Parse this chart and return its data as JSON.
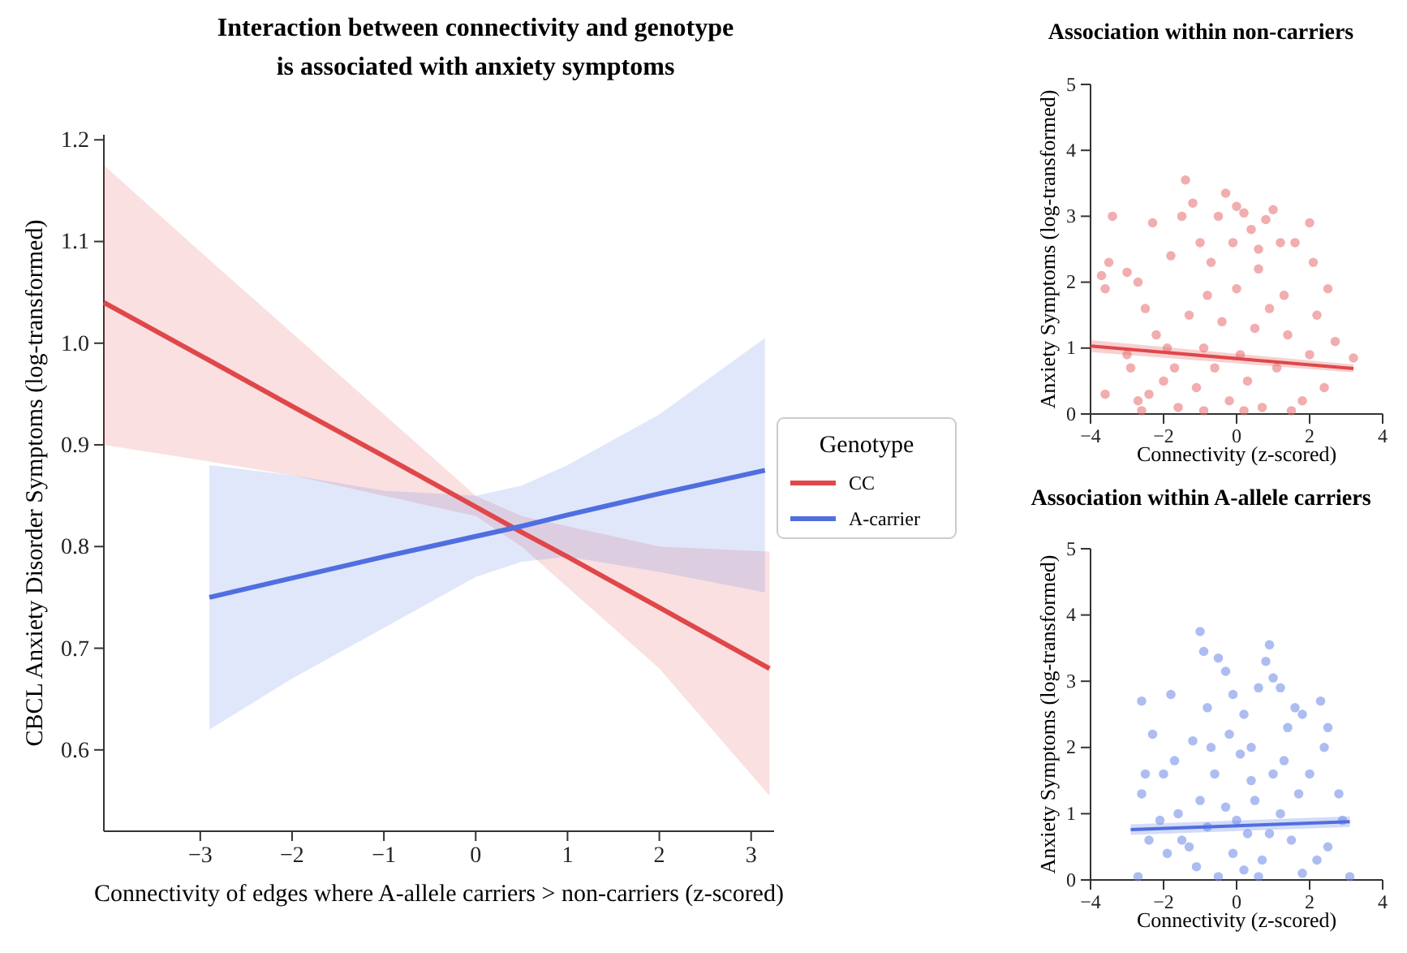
{
  "chart_data": [
    {
      "type": "line",
      "title": "Interaction between connectivity and genotype\nis associated with anxiety symptoms",
      "xlabel": "Connectivity of edges where A-allele carriers > non-carriers (z-scored)",
      "ylabel": "CBCL Anxiety Disorder Symptoms (log-transformed)",
      "legend_title": "Genotype",
      "legend": "right",
      "xlim": [
        -4.05,
        3.25
      ],
      "ylim": [
        0.52,
        1.205
      ],
      "xticks": [
        {
          "value": -3,
          "label": "−3"
        },
        {
          "value": -2,
          "label": "−2"
        },
        {
          "value": -1,
          "label": "−1"
        },
        0,
        1,
        2,
        3
      ],
      "yticks": [
        0.6,
        0.7,
        0.8,
        0.9,
        {
          "value": 1,
          "label": "1.0"
        },
        1.1,
        1.2
      ],
      "line_style": "solid",
      "series": [
        {
          "name": "CC",
          "color": "#e0474a",
          "x": [
            -4.05,
            -3,
            -2,
            -1,
            0,
            0.5,
            1,
            2,
            3.2
          ],
          "values": [
            1.04,
            0.988,
            0.938,
            0.889,
            0.839,
            0.814,
            0.79,
            0.74,
            0.68
          ],
          "lower": [
            0.9,
            0.885,
            0.87,
            0.85,
            0.83,
            0.8,
            0.76,
            0.68,
            0.555
          ],
          "upper": [
            1.175,
            1.09,
            1.01,
            0.93,
            0.85,
            0.83,
            0.82,
            0.8,
            0.795
          ]
        },
        {
          "name": "A-carrier",
          "color": "#4f6fe0",
          "x": [
            -2.9,
            -2,
            -1,
            0,
            0.5,
            1,
            2,
            3.15
          ],
          "values": [
            0.75,
            0.769,
            0.79,
            0.81,
            0.82,
            0.831,
            0.852,
            0.875
          ],
          "lower": [
            0.62,
            0.67,
            0.72,
            0.77,
            0.785,
            0.79,
            0.775,
            0.755
          ],
          "upper": [
            0.88,
            0.87,
            0.855,
            0.85,
            0.86,
            0.88,
            0.93,
            1.005
          ]
        }
      ]
    },
    {
      "type": "scatter",
      "title": "Association within non-carriers",
      "xlabel": "Connectivity (z-scored)",
      "ylabel": "Anxiety Symptoms (log-transformed)",
      "xlim": [
        -4,
        4
      ],
      "ylim": [
        0,
        5
      ],
      "xticks": [
        {
          "value": -4,
          "label": "−4"
        },
        {
          "value": -2,
          "label": "−2"
        },
        0,
        2,
        4
      ],
      "yticks": [
        0,
        1,
        2,
        3,
        4,
        5
      ],
      "marker": "circle",
      "series": [
        {
          "color": "#e8696b",
          "x": [
            -3.6,
            -3.4,
            -3.5,
            -3.7,
            -3.6,
            -3.0,
            -2.7,
            -2.7,
            -2.6,
            -3.0,
            -2.9,
            -2.5,
            -2.3,
            -2.2,
            -2.0,
            -1.8,
            -1.5,
            -1.4,
            -1.2,
            -1.0,
            -0.8,
            -0.5,
            -0.3,
            0.0,
            0.2,
            0.4,
            0.6,
            0.8,
            1.0,
            1.2,
            1.3,
            1.6,
            2.0,
            2.1,
            2.2,
            2.0,
            2.4,
            2.7,
            3.2,
            1.8,
            1.5,
            -1.6,
            -1.1,
            -0.9,
            -0.6,
            -0.4,
            -0.2,
            0.0,
            0.1,
            0.3,
            0.5,
            0.7,
            0.9,
            1.1,
            -1.3,
            -1.9,
            -0.7,
            0.6,
            -0.1,
            1.4,
            -2.4,
            0.2,
            -0.9,
            2.5,
            -1.7
          ],
          "values": [
            0.3,
            3.0,
            2.3,
            2.1,
            1.9,
            2.15,
            2.0,
            0.2,
            0.05,
            0.9,
            0.7,
            1.6,
            2.9,
            1.2,
            0.5,
            2.4,
            3.0,
            3.55,
            3.2,
            2.6,
            1.8,
            3.0,
            3.35,
            3.15,
            3.05,
            2.8,
            2.2,
            2.95,
            3.1,
            2.6,
            1.8,
            2.6,
            2.9,
            2.3,
            1.5,
            0.9,
            0.4,
            1.1,
            0.85,
            0.2,
            0.05,
            0.1,
            0.4,
            1.0,
            0.7,
            1.4,
            0.2,
            1.9,
            0.9,
            0.5,
            1.3,
            0.1,
            1.6,
            0.7,
            1.5,
            1.0,
            2.3,
            2.5,
            2.6,
            1.2,
            0.3,
            0.05,
            0.05,
            1.9,
            0.7
          ]
        },
        {
          "type": "line",
          "marker": "none",
          "color": "#e0474a",
          "x": [
            -4,
            3.2
          ],
          "values": [
            1.03,
            0.69
          ],
          "lower": [
            0.94,
            0.63
          ],
          "upper": [
            1.12,
            0.75
          ]
        }
      ]
    },
    {
      "type": "scatter",
      "title": "Association within A-allele carriers",
      "xlabel": "Connectivity (z-scored)",
      "ylabel": "Anxiety Symptoms (log-transformed)",
      "xlim": [
        -4,
        4
      ],
      "ylim": [
        0,
        5
      ],
      "xticks": [
        {
          "value": -4,
          "label": "−4"
        },
        {
          "value": -2,
          "label": "−2"
        },
        0,
        2,
        4
      ],
      "yticks": [
        0,
        1,
        2,
        3,
        4,
        5
      ],
      "marker": "circle",
      "series": [
        {
          "color": "#6a86e8",
          "x": [
            -2.6,
            -2.3,
            -2.5,
            -2.6,
            -2.0,
            -1.8,
            -1.7,
            -1.5,
            -1.2,
            -1.0,
            -0.9,
            -0.8,
            -0.5,
            -0.3,
            -0.1,
            0.2,
            0.4,
            0.6,
            0.9,
            0.8,
            1.0,
            1.2,
            1.4,
            1.6,
            1.8,
            2.3,
            2.5,
            2.4,
            2.0,
            2.8,
            2.9,
            2.5,
            2.2,
            3.1,
            1.8,
            1.5,
            1.2,
            1.0,
            0.7,
            0.5,
            0.3,
            0.1,
            -0.1,
            -0.3,
            -0.5,
            -0.6,
            -0.8,
            -1.0,
            -1.1,
            -1.3,
            -1.6,
            -1.9,
            -2.1,
            -2.4,
            -2.7,
            0.0,
            0.4,
            0.9,
            1.3,
            -0.2,
            0.6,
            -0.7,
            1.7,
            0.2
          ],
          "values": [
            2.7,
            2.2,
            1.6,
            1.3,
            1.6,
            2.8,
            1.8,
            0.6,
            2.1,
            3.75,
            3.45,
            2.6,
            3.35,
            3.15,
            2.8,
            2.5,
            2.0,
            2.9,
            3.55,
            3.3,
            3.05,
            2.9,
            2.3,
            2.6,
            2.5,
            2.7,
            2.3,
            2.0,
            1.6,
            1.3,
            0.9,
            0.5,
            0.3,
            0.05,
            0.1,
            0.6,
            1.0,
            1.6,
            0.3,
            1.2,
            0.7,
            1.9,
            0.4,
            1.1,
            0.05,
            1.6,
            0.8,
            1.2,
            0.2,
            0.5,
            1.0,
            0.4,
            0.9,
            0.6,
            0.05,
            0.9,
            1.5,
            0.7,
            1.8,
            2.2,
            0.05,
            2.0,
            1.3,
            0.15
          ]
        },
        {
          "type": "line",
          "marker": "none",
          "color": "#4f6fe0",
          "x": [
            -2.9,
            3.1
          ],
          "values": [
            0.76,
            0.88
          ],
          "lower": [
            0.68,
            0.8
          ],
          "upper": [
            0.84,
            0.96
          ]
        }
      ]
    }
  ]
}
